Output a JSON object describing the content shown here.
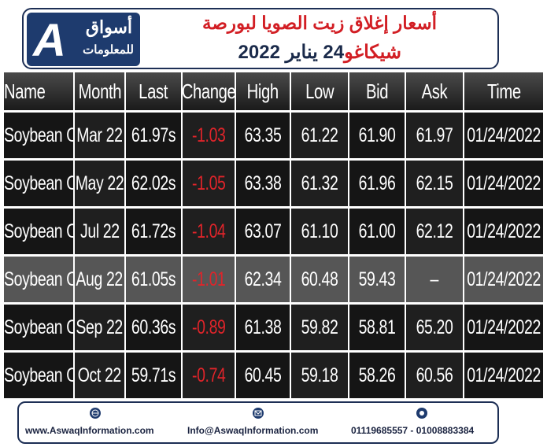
{
  "logo": {
    "name": "أسواق",
    "subtitle": "للمعلومات"
  },
  "title": {
    "line1": "أسعار إغلاق زيت الصويا لبورصة",
    "place": "شيكاغو",
    "date": "24 يناير 2022"
  },
  "table": {
    "columns": [
      "Name",
      "Month",
      "Last",
      "Change",
      "High",
      "Low",
      "Bid",
      "Ask",
      "Time"
    ],
    "rows": [
      [
        "Soybean Oil",
        "Mar 22",
        "61.97s",
        "-1.03",
        "63.35",
        "61.22",
        "61.90",
        "61.97",
        "01/24/2022"
      ],
      [
        "Soybean Oil",
        "May 22",
        "62.02s",
        "-1.05",
        "63.38",
        "61.32",
        "61.96",
        "62.15",
        "01/24/2022"
      ],
      [
        "Soybean Oil",
        "Jul 22",
        "61.72s",
        "-1.04",
        "63.07",
        "61.10",
        "61.00",
        "62.12",
        "01/24/2022"
      ],
      [
        "Soybean Oil",
        "Aug 22",
        "61.05s",
        "-1.01",
        "62.34",
        "60.48",
        "59.43",
        "–",
        "01/24/2022"
      ],
      [
        "Soybean Oil",
        "Sep 22",
        "60.36s",
        "-0.89",
        "61.38",
        "59.82",
        "58.81",
        "65.20",
        "01/24/2022"
      ],
      [
        "Soybean Oil",
        "Oct 22",
        "59.71s",
        "-0.74",
        "60.45",
        "59.18",
        "58.26",
        "60.56",
        "01/24/2022"
      ]
    ]
  },
  "footer": {
    "website": "www.AswaqInformation.com",
    "email": "Info@AswaqInformation.com",
    "phone": "01119685557 - 01008883384"
  }
}
